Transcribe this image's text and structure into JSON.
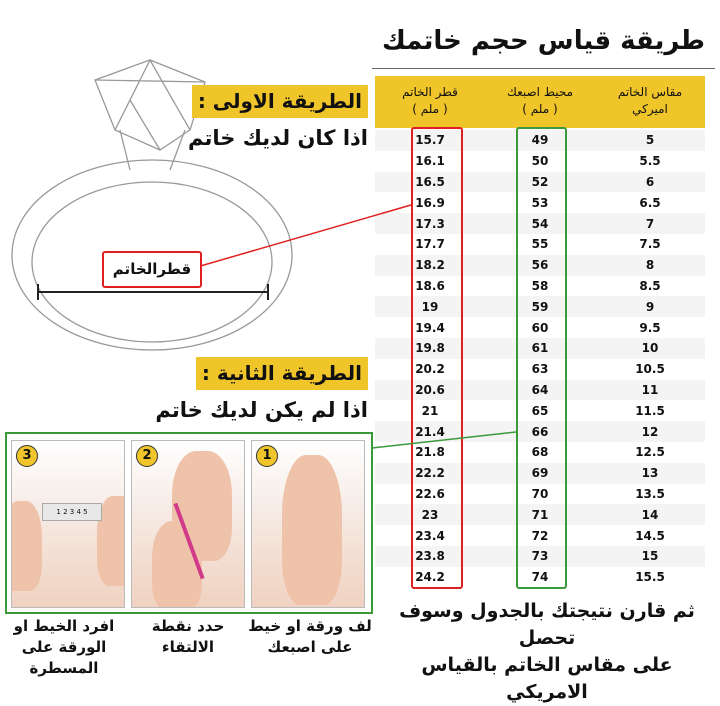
{
  "title": "طريقة قياس حجم خاتمك",
  "table": {
    "headers": {
      "diameter": "قطر الخاتم",
      "diameter_unit": "( ملم )",
      "circumference": "محيط اصبعك",
      "circumference_unit": "( ملم )",
      "us_size": "مقاس الخاتم",
      "us_size_2": "اميركي"
    },
    "rows": [
      [
        "15.7",
        "49",
        "5"
      ],
      [
        "16.1",
        "50",
        "5.5"
      ],
      [
        "16.5",
        "52",
        "6"
      ],
      [
        "16.9",
        "53",
        "6.5"
      ],
      [
        "17.3",
        "54",
        "7"
      ],
      [
        "17.7",
        "55",
        "7.5"
      ],
      [
        "18.2",
        "56",
        "8"
      ],
      [
        "18.6",
        "58",
        "8.5"
      ],
      [
        "19",
        "59",
        "9"
      ],
      [
        "19.4",
        "60",
        "9.5"
      ],
      [
        "19.8",
        "61",
        "10"
      ],
      [
        "20.2",
        "63",
        "10.5"
      ],
      [
        "20.6",
        "64",
        "11"
      ],
      [
        "21",
        "65",
        "11.5"
      ],
      [
        "21.4",
        "66",
        "12"
      ],
      [
        "21.8",
        "68",
        "12.5"
      ],
      [
        "22.2",
        "69",
        "13"
      ],
      [
        "22.6",
        "70",
        "13.5"
      ],
      [
        "23",
        "71",
        "14"
      ],
      [
        "23.4",
        "72",
        "14.5"
      ],
      [
        "23.8",
        "73",
        "15"
      ],
      [
        "24.2",
        "74",
        "15.5"
      ]
    ]
  },
  "method1": {
    "label": "الطريقة الاولى :",
    "text": "اذا كان لديك خاتم",
    "diameter_label": "قطرالخاتم"
  },
  "method2": {
    "label": "الطريقة الثانية :",
    "text": "اذا لم يكن لديك خاتم"
  },
  "steps": [
    {
      "num": "3",
      "caption1": "افرد الخيط او",
      "caption2": "الورقة على المسطرة",
      "ruler_text": "1 2 3 4 5"
    },
    {
      "num": "2",
      "caption1": "حدد نقطة",
      "caption2": "الالتقاء"
    },
    {
      "num": "1",
      "caption1": "لف ورقة او خيط",
      "caption2": "على اصبعك"
    }
  ],
  "footer": {
    "line1": "ثم قارن نتيجتك بالجدول وسوف تحصل",
    "line2": "على مقاس الخاتم بالقياس الامريكي"
  },
  "colors": {
    "yellow": "#f0c52a",
    "red": "#e02020",
    "green": "#3a9a3a"
  }
}
